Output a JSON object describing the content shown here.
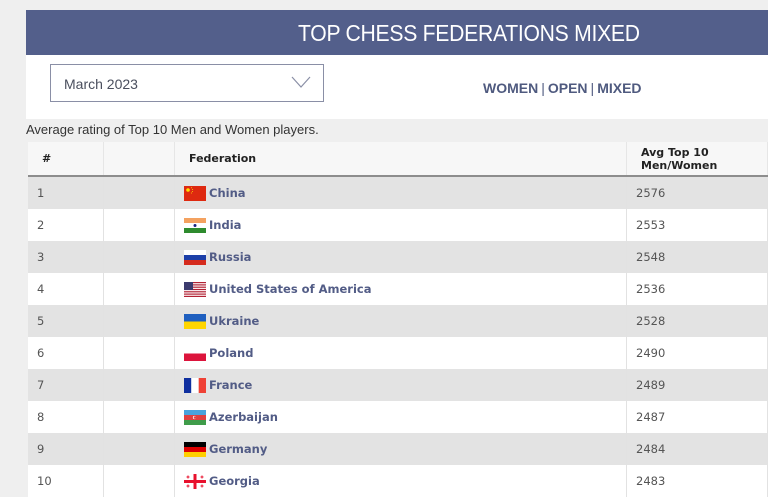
{
  "banner": {
    "title": "TOP CHESS FEDERATIONS MIXED"
  },
  "controls": {
    "period_select": {
      "value": "March 2023",
      "icon": "chevron-down-icon"
    },
    "modes": [
      {
        "label": "WOMEN"
      },
      {
        "label": "OPEN"
      },
      {
        "label": "MIXED"
      }
    ],
    "separator": "|"
  },
  "caption": "Average rating of Top 10 Men and Women players.",
  "table": {
    "headers": [
      "#",
      "",
      "Federation",
      "Avg Top 10 Men/Women"
    ],
    "rows": [
      {
        "rank": "1",
        "federation": "China",
        "flag": "china-flag",
        "avg": "2576"
      },
      {
        "rank": "2",
        "federation": "India",
        "flag": "india-flag",
        "avg": "2553"
      },
      {
        "rank": "3",
        "federation": "Russia",
        "flag": "russia-flag",
        "avg": "2548"
      },
      {
        "rank": "4",
        "federation": "United States of America",
        "flag": "usa-flag",
        "avg": "2536"
      },
      {
        "rank": "5",
        "federation": "Ukraine",
        "flag": "ukraine-flag",
        "avg": "2528"
      },
      {
        "rank": "6",
        "federation": "Poland",
        "flag": "poland-flag",
        "avg": "2490"
      },
      {
        "rank": "7",
        "federation": "France",
        "flag": "france-flag",
        "avg": "2489"
      },
      {
        "rank": "8",
        "federation": "Azerbaijan",
        "flag": "azerbaijan-flag",
        "avg": "2487"
      },
      {
        "rank": "9",
        "federation": "Germany",
        "flag": "germany-flag",
        "avg": "2484"
      },
      {
        "rank": "10",
        "federation": "Georgia",
        "flag": "georgia-flag",
        "avg": "2483"
      }
    ]
  },
  "colors": {
    "banner": "#535f8b",
    "link": "#525c86",
    "row_alt": "#e3e3e3"
  }
}
